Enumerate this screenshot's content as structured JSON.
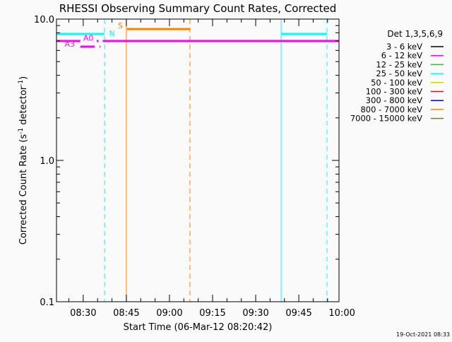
{
  "chart_data": {
    "type": "line",
    "title": "RHESSI Observing Summary Count Rates, Corrected",
    "xlabel": "Start Time (06-Mar-12 08:20:42)",
    "ylabel": "Corrected Count Rate (s⁻¹ detector⁻¹)",
    "ylabel_parts": {
      "pre": "Corrected Count Rate (s",
      "sup1": "-1",
      "mid": " detector",
      "sup2": "-1",
      "post": ")"
    },
    "yscale": "log",
    "ylim": [
      0.1,
      10.0
    ],
    "ytick_labels": [
      "0.1",
      "1.0",
      "10.0"
    ],
    "xlim": [
      "08:20:42",
      "09:59:00"
    ],
    "xtick_labels": [
      "08:30",
      "08:45",
      "09:00",
      "09:15",
      "09:30",
      "09:45",
      "10:00"
    ],
    "legend": {
      "placement": "right",
      "title": "Det 1,3,5,6,9",
      "entries": [
        {
          "label": "3 - 6 keV",
          "color": "#000000"
        },
        {
          "label": "6 - 12 keV",
          "color": "#ff00ff"
        },
        {
          "label": "12 - 25 keV",
          "color": "#00e000"
        },
        {
          "label": "25 - 50 keV",
          "color": "#00ffff"
        },
        {
          "label": "50 - 100 keV",
          "color": "#d0d000"
        },
        {
          "label": "100 - 300 keV",
          "color": "#ff0000"
        },
        {
          "label": "300 - 800 keV",
          "color": "#0000ff"
        },
        {
          "label": "800 - 7000 keV",
          "color": "#ff8000"
        },
        {
          "label": "7000 - 15000 keV",
          "color": "#808000"
        }
      ]
    },
    "segments": [
      {
        "color": "#00ffff",
        "y": 7.85,
        "x": [
          "08:20:42",
          "08:37:24"
        ]
      },
      {
        "color": "#00ffff",
        "y": 7.85,
        "x": [
          "09:38:50",
          "09:54:48"
        ]
      },
      {
        "color": "#ff8000",
        "y": 8.5,
        "x": [
          "08:45:15",
          "09:07:07"
        ]
      },
      {
        "color": "#ff00ff",
        "y": 7.0,
        "x": [
          "08:20:42",
          "08:29:00"
        ]
      },
      {
        "color": "#ff00ff",
        "y": 7.0,
        "x": [
          "08:34:40",
          "08:35:20"
        ]
      },
      {
        "color": "#ff00ff",
        "y": 7.0,
        "x": [
          "08:36:45",
          "09:59:00"
        ]
      },
      {
        "color": "#ff00ff",
        "y": 6.38,
        "x": [
          "08:29:00",
          "08:34:00"
        ]
      },
      {
        "color": "#ff00ff",
        "y": 6.38,
        "x": [
          "08:35:40",
          "08:36:00"
        ]
      }
    ],
    "vlines": [
      {
        "x": "08:20:42",
        "color": "#00ffff",
        "style": "solid"
      },
      {
        "x": "08:37:24",
        "color": "#00ffff",
        "style": "dashed"
      },
      {
        "x": "08:45:00",
        "color": "#ff8000",
        "style": "solid"
      },
      {
        "x": "09:07:07",
        "color": "#ff8000",
        "style": "dashed"
      },
      {
        "x": "09:38:50",
        "color": "#00ffff",
        "style": "solid"
      },
      {
        "x": "09:54:48",
        "color": "#00ffff",
        "style": "dashed"
      }
    ],
    "annotations": [
      {
        "text": "N",
        "x": "08:39:00",
        "y": 7.6,
        "color": "#00ffff"
      },
      {
        "text": "S",
        "x": "08:42:00",
        "y": 8.6,
        "color": "#ff8000"
      },
      {
        "text": "A0",
        "x": "08:30:00",
        "y": 7.05,
        "color": "#ff00ff"
      },
      {
        "text": "A3",
        "x": "08:23:30",
        "y": 6.4,
        "color": "#ff00ff"
      }
    ]
  },
  "footer": {
    "timestamp": "19-Oct-2021 08:33"
  }
}
